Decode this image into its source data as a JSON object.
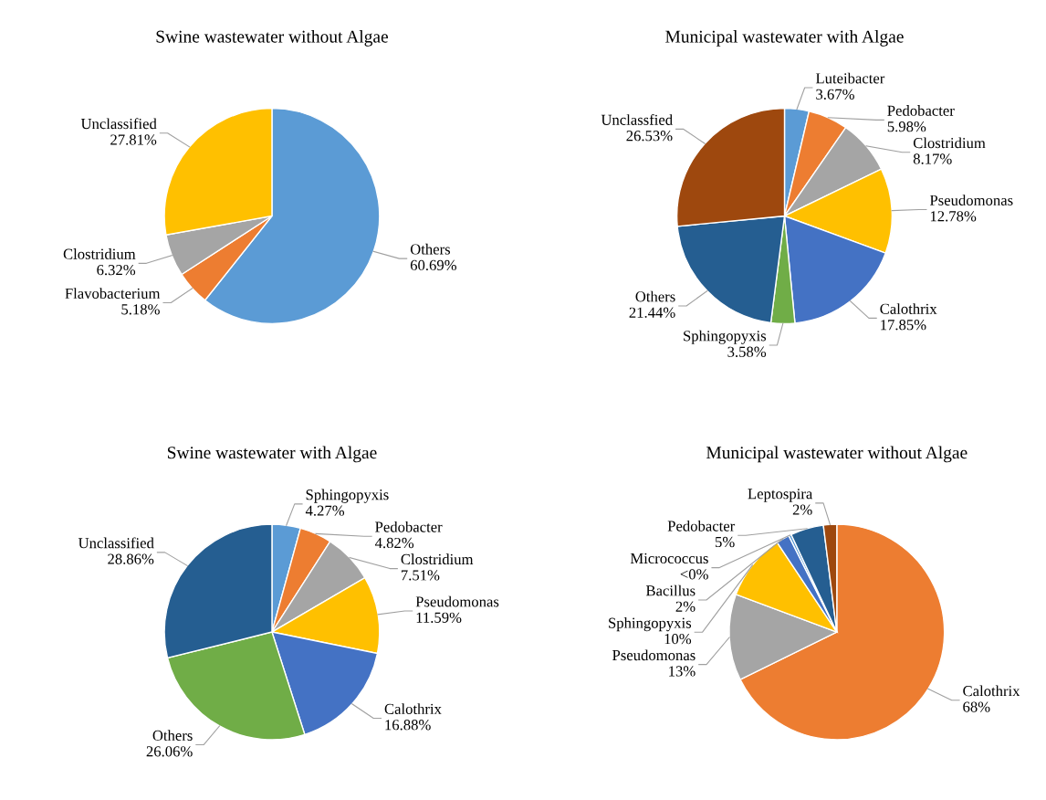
{
  "chart_data": [
    {
      "type": "pie",
      "title": "Swine wastewater without Algae",
      "categories": [
        "Others",
        "Flavobacterium",
        "Clostridium",
        "Unclassified"
      ],
      "values": [
        60.69,
        5.18,
        6.32,
        27.81
      ],
      "value_labels": [
        "60.69%",
        "5.18%",
        "6.32%",
        "27.81%"
      ],
      "colors": [
        "#5b9bd5",
        "#ed7d31",
        "#a5a5a5",
        "#ffc000"
      ]
    },
    {
      "type": "pie",
      "title": "Municipal wastewater with Algae",
      "categories": [
        "Luteibacter",
        "Pedobacter",
        "Clostridium",
        "Pseudomonas",
        "Calothrix",
        "Sphingopyxis",
        "Others",
        "Unclassfied"
      ],
      "values": [
        3.67,
        5.98,
        8.17,
        12.78,
        17.85,
        3.58,
        21.44,
        26.53
      ],
      "value_labels": [
        "3.67%",
        "5.98%",
        "8.17%",
        "12.78%",
        "17.85%",
        "3.58%",
        "21.44%",
        "26.53%"
      ],
      "colors": [
        "#5b9bd5",
        "#ed7d31",
        "#a5a5a5",
        "#ffc000",
        "#4472c4",
        "#70ad47",
        "#255e91",
        "#9e480e"
      ]
    },
    {
      "type": "pie",
      "title": "Swine wastewater with Algae",
      "categories": [
        "Sphingopyxis",
        "Pedobacter",
        "Clostridium",
        "Pseudomonas",
        "Calothrix",
        "Others",
        "Unclassified"
      ],
      "values": [
        4.27,
        4.82,
        7.51,
        11.59,
        16.88,
        26.06,
        28.86
      ],
      "value_labels": [
        "4.27%",
        "4.82%",
        "7.51%",
        "11.59%",
        "16.88%",
        "26.06%",
        "28.86%"
      ],
      "colors": [
        "#5b9bd5",
        "#ed7d31",
        "#a5a5a5",
        "#ffc000",
        "#4472c4",
        "#70ad47",
        "#255e91"
      ]
    },
    {
      "type": "pie",
      "title": "Municipal wastewater without Algae",
      "categories": [
        "Calothrix",
        "Pseudomonas",
        "Sphingopyxis",
        "Bacillus",
        "Micrococcus",
        "Pedobacter",
        "Leptospira"
      ],
      "values": [
        68,
        13,
        10,
        2,
        0.4,
        5,
        2
      ],
      "value_labels": [
        "68%",
        "13%",
        "10%",
        "2%",
        "<0%",
        "5%",
        "2%"
      ],
      "colors": [
        "#ed7d31",
        "#a5a5a5",
        "#ffc000",
        "#4472c4",
        "#5b9bd5",
        "#255e91",
        "#9e480e"
      ]
    }
  ]
}
